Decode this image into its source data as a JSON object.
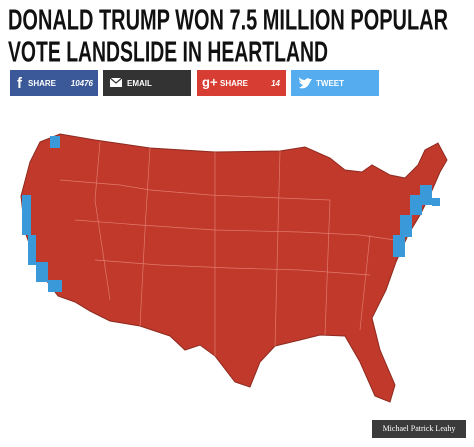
{
  "header": {
    "title_lines": [
      "DONALD TRUMP WON 7.5 MILLION POPULAR",
      "VOTE LANDSLIDE IN HEARTLAND"
    ]
  },
  "share_buttons": [
    {
      "icon": "f",
      "label": "SHARE",
      "count": 10476
    },
    {
      "label": "EMAIL"
    },
    {
      "icon": "g+",
      "label": "SHARE",
      "count": 14
    },
    {
      "label": "TWEET"
    }
  ],
  "image": {
    "credit": "Michael Patrick Leahy"
  }
}
